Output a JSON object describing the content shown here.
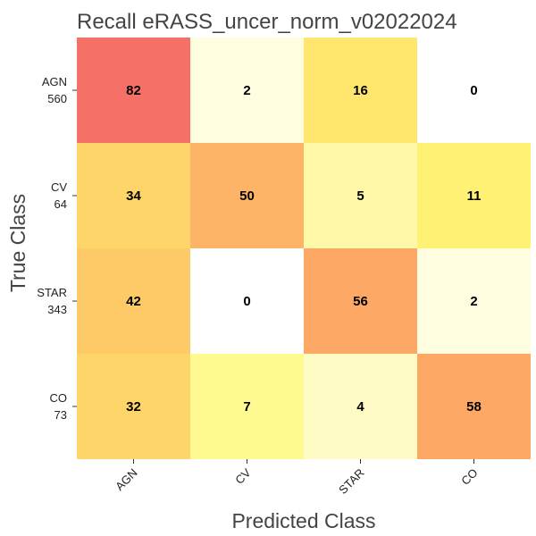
{
  "chart_data": {
    "type": "heatmap",
    "title": "Recall eRASS_uncer_norm_v02022024",
    "xlabel": "Predicted Class",
    "ylabel": "True Class",
    "x_categories": [
      "AGN",
      "CV",
      "STAR",
      "CO"
    ],
    "y_categories": [
      {
        "label": "AGN",
        "count": "560"
      },
      {
        "label": "CV",
        "count": "64"
      },
      {
        "label": "STAR",
        "count": "343"
      },
      {
        "label": "CO",
        "count": "73"
      }
    ],
    "values": [
      [
        82,
        2,
        16,
        0
      ],
      [
        34,
        50,
        5,
        11
      ],
      [
        42,
        0,
        56,
        2
      ],
      [
        32,
        7,
        4,
        58
      ]
    ],
    "colors": [
      [
        "#f57066",
        "#fefde0",
        "#ffe66e",
        "#ffffff"
      ],
      [
        "#fed568",
        "#feb466",
        "#fef8a8",
        "#fef173"
      ],
      [
        "#fec967",
        "#ffffff",
        "#fea866",
        "#fefde0"
      ],
      [
        "#fed568",
        "#fef990",
        "#fefcc4",
        "#fea866"
      ]
    ],
    "show_cell_labels": true,
    "grid": false
  }
}
